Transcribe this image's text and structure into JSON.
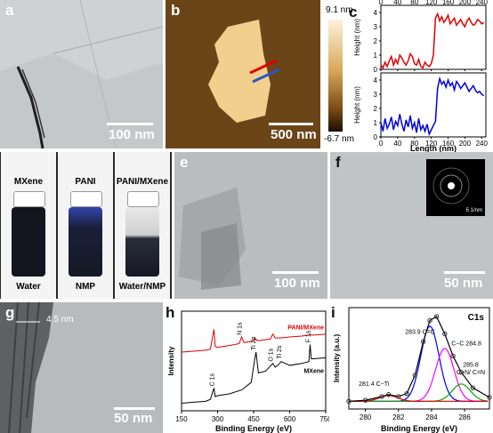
{
  "panels": {
    "a": {
      "label": "a",
      "scale": "100 nm"
    },
    "b": {
      "label": "b",
      "scale": "500 nm",
      "cbar_max": "9.1 nm",
      "cbar_min": "-6.7 nm"
    },
    "c": {
      "label": "c",
      "ylabel": "Height (nm)",
      "xlabel": "Length (nm)",
      "xticks": [
        "0",
        "40",
        "80",
        "120",
        "160",
        "200",
        "240"
      ],
      "yticks": [
        "0",
        "1",
        "2",
        "3",
        "4"
      ]
    },
    "d": {
      "label": "d",
      "vials": [
        {
          "top": "MXene",
          "bottom": "Water"
        },
        {
          "top": "PANI",
          "bottom": "NMP"
        },
        {
          "top": "PANI/MXene",
          "bottom": "Water/NMP"
        }
      ]
    },
    "e": {
      "label": "e",
      "scale": "100 nm"
    },
    "f": {
      "label": "f",
      "scale": "50 nm",
      "inset_scale": "5 1/nm"
    },
    "g": {
      "label": "g",
      "scale": "50 nm",
      "lattice": "4.5 nm"
    },
    "h": {
      "label": "h",
      "ylabel": "Intensity",
      "xlabel": "Binding Energy (eV)",
      "xticks": [
        "150",
        "300",
        "450",
        "600",
        "750"
      ],
      "series_labels": {
        "top": "PANI/MXene",
        "bottom": "MXene"
      },
      "peaks": [
        "C 1s",
        "N 1s",
        "Ti 2p",
        "O 1s",
        "Ti 2s",
        "F 1s"
      ]
    },
    "i": {
      "label": "i",
      "title": "C1s",
      "ylabel": "Intensity (a.u.)",
      "xlabel": "Binding Energy (eV)",
      "xticks": [
        "280",
        "282",
        "284",
        "286"
      ],
      "annotations": {
        "cc_double": "283.9  C=C",
        "cc_single": "C−C  284.8",
        "cn_value": "285.8",
        "cn_bonds": "C−N/ C=N",
        "cti": "281.4  C−Ti"
      }
    }
  },
  "chart_data": [
    {
      "type": "line",
      "title": "",
      "xlabel": "Length (nm)",
      "ylabel": "Height (nm)",
      "xlim": [
        0,
        250
      ],
      "ylim": [
        0,
        4.5
      ],
      "series": [
        {
          "color": "#e00000",
          "x": [
            0,
            5,
            10,
            15,
            20,
            25,
            30,
            35,
            40,
            45,
            50,
            55,
            60,
            65,
            70,
            75,
            80,
            85,
            90,
            95,
            100,
            105,
            110,
            115,
            120,
            125,
            130,
            135,
            140,
            145,
            150,
            155,
            160,
            165,
            170,
            175,
            180,
            185,
            190,
            195,
            200,
            205,
            210,
            215,
            220,
            225,
            230,
            235,
            240,
            245
          ],
          "y": [
            0.3,
            0.1,
            0.5,
            0.2,
            0.6,
            0.9,
            0.3,
            0.7,
            0.4,
            1.0,
            0.8,
            0.5,
            0.3,
            0.6,
            1.1,
            0.9,
            0.4,
            0.3,
            0.7,
            0.2,
            0.1,
            0.5,
            0.3,
            0.2,
            0.4,
            1.0,
            3.6,
            3.9,
            3.4,
            3.7,
            3.3,
            3.5,
            3.8,
            3.2,
            3.4,
            3.6,
            3.1,
            3.3,
            3.5,
            3.2,
            3.0,
            3.4,
            3.6,
            3.3,
            3.1,
            3.2,
            3.5,
            3.4,
            3.2,
            3.3
          ]
        }
      ]
    },
    {
      "type": "line",
      "title": "",
      "xlabel": "Length (nm)",
      "ylabel": "Height (nm)",
      "xlim": [
        0,
        250
      ],
      "ylim": [
        0,
        4.5
      ],
      "series": [
        {
          "color": "#0000dd",
          "x": [
            0,
            5,
            10,
            15,
            20,
            25,
            30,
            35,
            40,
            45,
            50,
            55,
            60,
            65,
            70,
            75,
            80,
            85,
            90,
            95,
            100,
            105,
            110,
            115,
            120,
            125,
            130,
            135,
            140,
            145,
            150,
            155,
            160,
            165,
            170,
            175,
            180,
            185,
            190,
            195,
            200,
            205,
            210,
            215,
            220,
            225,
            230,
            235,
            240,
            245
          ],
          "y": [
            1.0,
            0.4,
            1.3,
            0.6,
            0.9,
            1.4,
            0.5,
            1.1,
            0.8,
            1.6,
            0.9,
            0.4,
            1.2,
            0.7,
            1.5,
            0.6,
            1.0,
            0.3,
            1.3,
            0.5,
            0.8,
            0.4,
            0.9,
            0.2,
            0.5,
            0.8,
            1.1,
            3.4,
            4.1,
            3.7,
            3.9,
            3.5,
            4.0,
            3.6,
            3.8,
            3.3,
            3.9,
            3.7,
            3.4,
            3.6,
            3.8,
            3.5,
            3.2,
            3.4,
            3.6,
            3.3,
            3.1,
            3.2,
            3.0,
            2.9
          ]
        }
      ]
    },
    {
      "type": "line",
      "title": "",
      "xlabel": "Binding Energy (eV)",
      "ylabel": "Intensity",
      "xlim": [
        150,
        750
      ],
      "series": [
        {
          "name": "PANI/MXene",
          "color": "#e00000",
          "x": [
            150,
            200,
            250,
            270,
            285,
            290,
            300,
            350,
            390,
            400,
            410,
            450,
            455,
            460,
            470,
            520,
            530,
            540,
            560,
            600,
            650,
            680,
            685,
            690,
            700,
            750
          ],
          "y": [
            0.62,
            0.63,
            0.64,
            0.65,
            0.86,
            0.68,
            0.67,
            0.69,
            0.71,
            0.78,
            0.72,
            0.74,
            0.77,
            0.75,
            0.74,
            0.76,
            0.81,
            0.77,
            0.77,
            0.78,
            0.79,
            0.8,
            0.81,
            0.8,
            0.8,
            0.81
          ]
        },
        {
          "name": "MXene",
          "color": "#000000",
          "x": [
            150,
            200,
            250,
            270,
            285,
            290,
            300,
            350,
            400,
            440,
            455,
            460,
            470,
            500,
            530,
            540,
            550,
            565,
            600,
            650,
            680,
            685,
            690,
            700,
            750
          ],
          "y": [
            0.08,
            0.09,
            0.1,
            0.12,
            0.24,
            0.15,
            0.16,
            0.18,
            0.22,
            0.3,
            0.55,
            0.62,
            0.4,
            0.42,
            0.5,
            0.46,
            0.48,
            0.52,
            0.48,
            0.5,
            0.52,
            0.7,
            0.55,
            0.55,
            0.56
          ]
        }
      ]
    },
    {
      "type": "line",
      "title": "C1s",
      "xlabel": "Binding Energy (eV)",
      "ylabel": "Intensity (a.u.)",
      "xlim": [
        279,
        287.5
      ],
      "series": [
        {
          "name": "envelope",
          "color": "#000000",
          "x": [
            279,
            280,
            281,
            281.4,
            282,
            282.5,
            283,
            283.5,
            283.9,
            284.3,
            284.8,
            285.3,
            285.8,
            286.5,
            287.5
          ],
          "y": [
            0.08,
            0.09,
            0.13,
            0.15,
            0.13,
            0.16,
            0.35,
            0.7,
            0.92,
            0.96,
            0.78,
            0.55,
            0.38,
            0.22,
            0.12
          ]
        },
        {
          "name": "C=C",
          "color": "#0000ff",
          "center": 283.9,
          "height": 0.78
        },
        {
          "name": "C−C",
          "color": "#ff00ff",
          "center": 284.8,
          "height": 0.55
        },
        {
          "name": "C−N/C=N",
          "color": "#00aa00",
          "center": 285.8,
          "height": 0.18
        },
        {
          "name": "C−Ti",
          "color": "#e00000",
          "center": 281.4,
          "height": 0.06
        }
      ]
    }
  ],
  "colors": {
    "red": "#e00000",
    "blue": "#0000dd",
    "afm_bright": "#f2cf8c",
    "afm_dark": "#5c3a12"
  }
}
